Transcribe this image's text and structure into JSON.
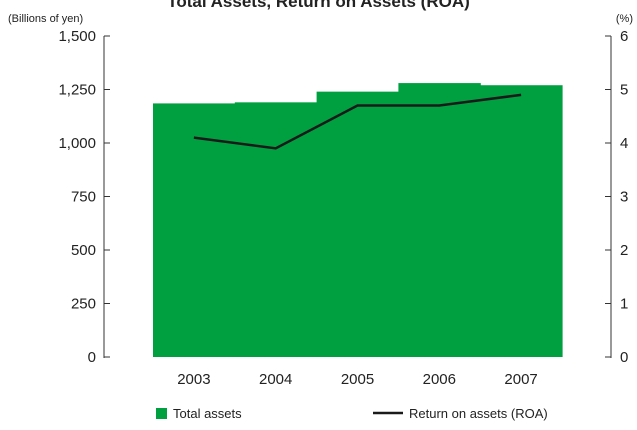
{
  "title_fragment": "Total Assets, Return on Assets (ROA)",
  "chart_data": {
    "type": "bar",
    "categories": [
      "2003",
      "2004",
      "2005",
      "2006",
      "2007"
    ],
    "y_left": {
      "unit_label": "(Billions of yen)",
      "range": [
        0,
        1500
      ],
      "ticks": [
        "0",
        "250",
        "500",
        "750",
        "1,000",
        "1,250",
        "1,500"
      ]
    },
    "y_right": {
      "unit_label": "(%)",
      "range": [
        0,
        6
      ],
      "ticks": [
        "0",
        "1",
        "2",
        "3",
        "4",
        "5",
        "6"
      ]
    },
    "series": [
      {
        "name": "Total assets",
        "type": "bar",
        "axis": "left",
        "values": [
          1185,
          1190,
          1240,
          1280,
          1270
        ],
        "color": "#00a040"
      },
      {
        "name": "Return on assets (ROA)",
        "type": "line",
        "axis": "right",
        "values": [
          4.1,
          3.9,
          4.7,
          4.7,
          4.9
        ],
        "color": "#1a1a1a"
      }
    ],
    "legend_position": "bottom",
    "grid": false
  }
}
